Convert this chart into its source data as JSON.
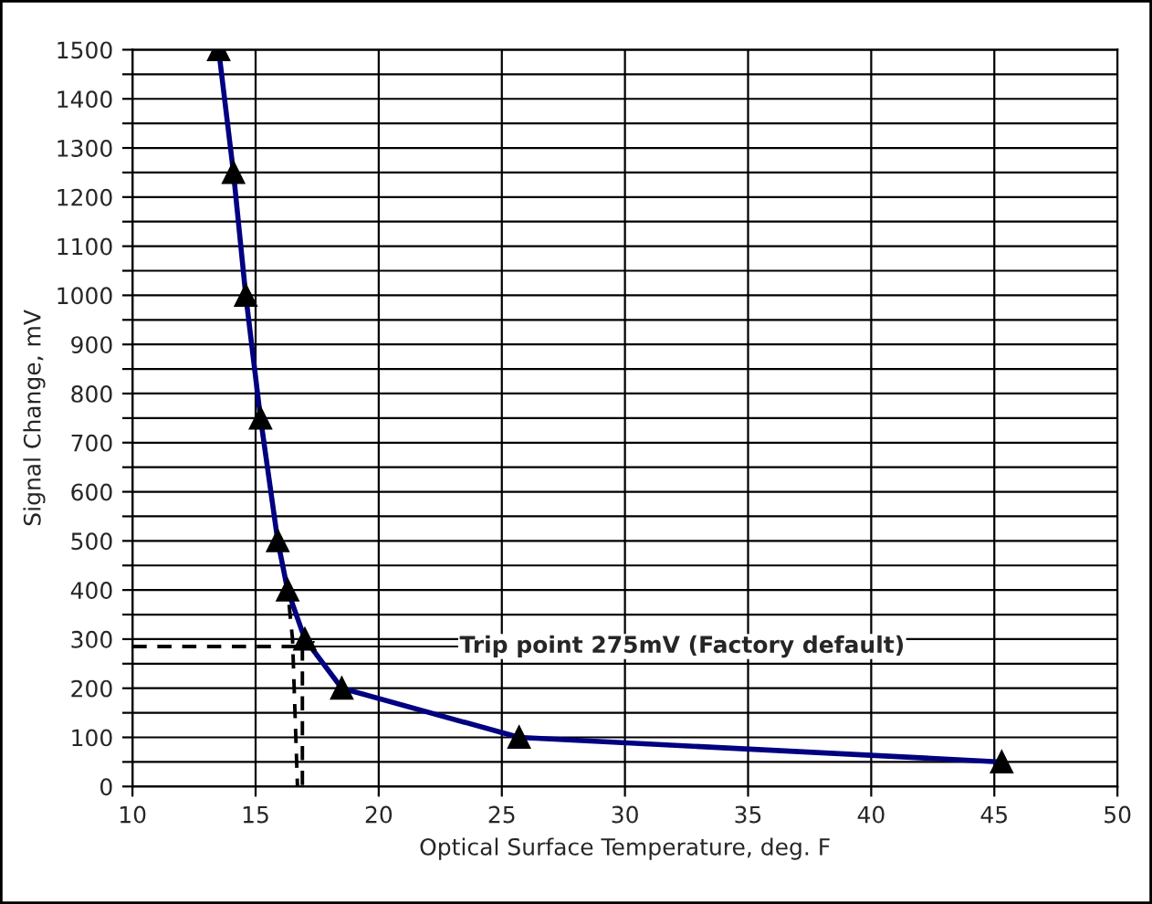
{
  "chart_data": {
    "type": "line",
    "xlabel": "Optical Surface Temperature, deg. F",
    "ylabel": "Signal Change, mV",
    "series": [
      {
        "color": "#000080",
        "marker": "triangle",
        "line_style": "solid",
        "x": [
          13.5,
          14.1,
          14.6,
          15.2,
          15.9,
          16.3,
          17.0,
          18.5,
          25.7,
          45.3
        ],
        "values": [
          1500,
          1250,
          1000,
          750,
          500,
          400,
          300,
          200,
          100,
          50
        ]
      },
      {
        "color": "#000000",
        "marker": "none",
        "line_style": "dashed",
        "x": [
          10,
          16.95
        ],
        "values": [
          285,
          285
        ]
      },
      {
        "color": "#000000",
        "marker": "none",
        "line_style": "dashed",
        "x": [
          16.9,
          16.9
        ],
        "values": [
          285,
          0
        ]
      },
      {
        "color": "#000000",
        "marker": "none",
        "line_style": "dashed",
        "x": [
          15.3,
          15.9,
          16.3,
          16.5,
          16.7
        ],
        "values": [
          720,
          500,
          400,
          300,
          0
        ]
      }
    ],
    "annotations": [
      {
        "text": "Trip point 275mV (Factory default)",
        "x": 16.9,
        "y": 285
      }
    ],
    "xlim": [
      10,
      50
    ],
    "xticks": [
      10,
      15,
      20,
      25,
      30,
      35,
      40,
      45,
      50
    ],
    "ylim": [
      0,
      1500
    ],
    "yticks": [
      0,
      {
        "value": 50,
        "label": null
      },
      100,
      {
        "value": 150,
        "label": null
      },
      200,
      {
        "value": 250,
        "label": null
      },
      300,
      {
        "value": 350,
        "label": null
      },
      400,
      {
        "value": 450,
        "label": null
      },
      500,
      {
        "value": 550,
        "label": null
      },
      600,
      {
        "value": 650,
        "label": null
      },
      700,
      {
        "value": 750,
        "label": null
      },
      800,
      {
        "value": 850,
        "label": null
      },
      900,
      {
        "value": 950,
        "label": null
      },
      1000,
      {
        "value": 1050,
        "label": null
      },
      1100,
      {
        "value": 1150,
        "label": null
      },
      1200,
      {
        "value": 1250,
        "label": null
      },
      1300,
      {
        "value": 1350,
        "label": null
      },
      1400,
      {
        "value": 1450,
        "label": null
      },
      1500
    ],
    "grid": true,
    "legend": false
  }
}
